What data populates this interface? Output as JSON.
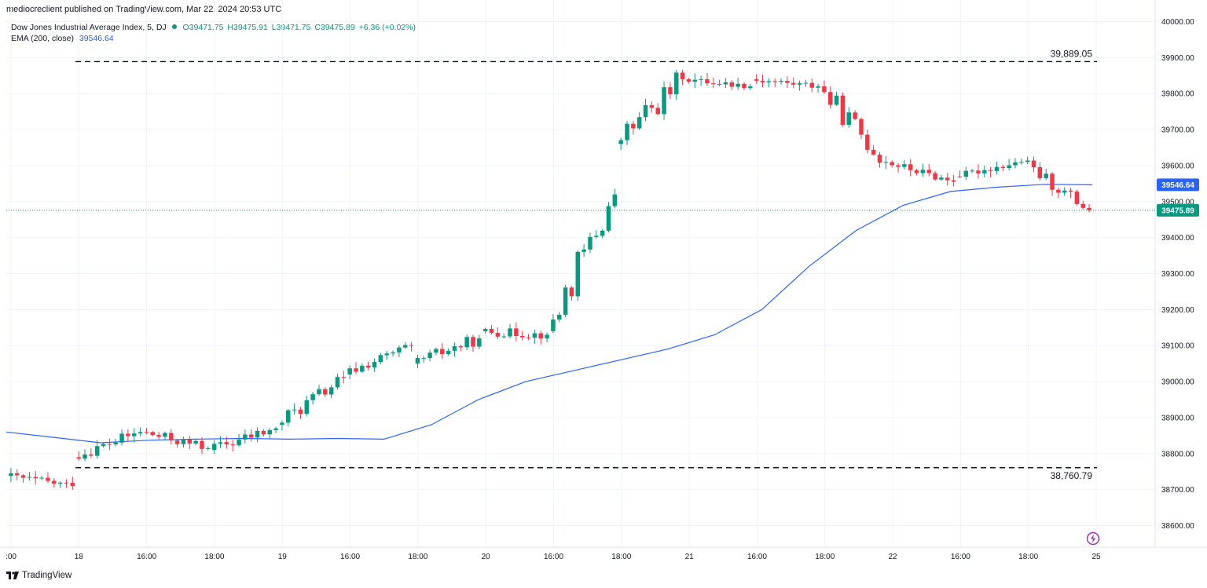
{
  "header": {
    "published": "mediocreclient published on TradingView.com, Mar 22, 2024 20:53 UTC"
  },
  "legend": {
    "symbol": "Dow Jones Industrial Average Index, 5, DJ",
    "open": "O39471.75",
    "high": "H39475.91",
    "low": "L39471.75",
    "close": "C39475.89",
    "change": "+6.36 (+0.02%)",
    "ema_label": "EMA (200, close)",
    "ema_value": "39546.64"
  },
  "footer": {
    "brand": "TradingView"
  },
  "icons": {
    "brand_logo": "tradingview-logo-icon",
    "flash": "lightning-icon"
  },
  "colors": {
    "up": "#089981",
    "down": "#f23645",
    "ema": "#2962ff",
    "last_price": "#089981",
    "dashed": "#131722"
  },
  "chart_data": {
    "type": "candlestick",
    "title": "Dow Jones Industrial Average Index, 5, DJ",
    "ylim": [
      38540,
      40060
    ],
    "y_ticks": [
      38600,
      38700,
      38800,
      38900,
      39000,
      39100,
      39200,
      39300,
      39400,
      39500,
      39600,
      39700,
      39800,
      39900,
      40000
    ],
    "y_tick_labels": [
      "38600.00",
      "38700.00",
      "38800.00",
      "38900.00",
      "39000.00",
      "39100.00",
      "39200.00",
      "39300.00",
      "39400.00",
      "39500.00",
      "39600.00",
      "39700.00",
      "39800.00",
      "39900.00",
      "40000.00"
    ],
    "x_tick_labels": [
      ":00",
      "18",
      "16:00",
      "18:00",
      "19",
      "16:00",
      "18:00",
      "20",
      "16:00",
      "18:00",
      "21",
      "16:00",
      "18:00",
      "22",
      "16:00",
      "18:00",
      "25"
    ],
    "grid": true,
    "levels": [
      {
        "label": "39,889.05",
        "value": 39889.05
      },
      {
        "label": "38,760.79",
        "value": 38760.79
      }
    ],
    "last_price": {
      "value": 39475.89,
      "label": "39475.89"
    },
    "ema_tag": {
      "value": 39546.64,
      "label": "39546.64"
    },
    "sessions": [
      {
        "open": 38738,
        "close": 38710,
        "high": 38770,
        "low": 38668,
        "trend": 20
      },
      {
        "open": 38790,
        "close": 38860,
        "high": 38900,
        "low": 38770,
        "trend": 10
      },
      {
        "open": 38860,
        "close": 38815,
        "high": 38895,
        "low": 38775,
        "trend": -40
      },
      {
        "open": 38810,
        "close": 38870,
        "high": 38900,
        "low": 38760,
        "trend": 60
      },
      {
        "open": 38880,
        "close": 39010,
        "high": 39040,
        "low": 38860,
        "trend": 120
      },
      {
        "open": 39020,
        "close": 39100,
        "high": 39110,
        "low": 38990,
        "trend": -60
      },
      {
        "open": 39050,
        "close": 39120,
        "high": 39130,
        "low": 38995,
        "trend": 60
      },
      {
        "open": 39140,
        "close": 39130,
        "high": 39190,
        "low": 39090,
        "trend": -20
      },
      {
        "open": 39140,
        "close": 39520,
        "high": 39540,
        "low": 39130,
        "trend": 380
      },
      {
        "open": 39660,
        "close": 39840,
        "high": 39889,
        "low": 39600,
        "trend": 170
      },
      {
        "open": 39840,
        "close": 39820,
        "high": 39875,
        "low": 39810,
        "trend": -20
      },
      {
        "open": 39840,
        "close": 39820,
        "high": 39870,
        "low": 39790,
        "trend": -10
      },
      {
        "open": 39820,
        "close": 39610,
        "high": 39850,
        "low": 39590,
        "trend": -210
      },
      {
        "open": 39610,
        "close": 39555,
        "high": 39630,
        "low": 39540,
        "trend": -55
      },
      {
        "open": 39570,
        "close": 39610,
        "high": 39625,
        "low": 39555,
        "trend": 40
      },
      {
        "open": 39610,
        "close": 39476,
        "high": 39625,
        "low": 39470,
        "trend": -135
      }
    ],
    "ema": [
      38860,
      38845,
      38830,
      38837,
      38840,
      38842,
      38840,
      38842,
      38840,
      38880,
      38950,
      39000,
      39030,
      39060,
      39090,
      39130,
      39200,
      39320,
      39420,
      39490,
      39528,
      39540,
      39548,
      39546.64
    ]
  }
}
